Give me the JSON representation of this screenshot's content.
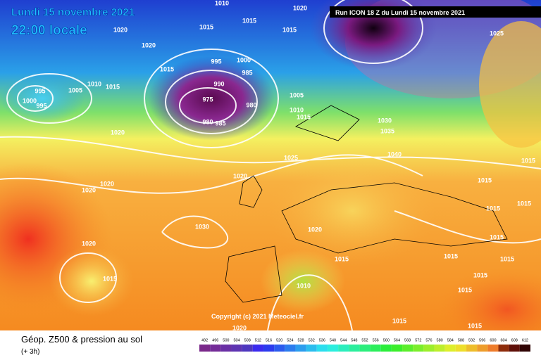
{
  "header": {
    "date": "Lundi 15 novembre 2021",
    "time": "22:00 locale",
    "run": "Run ICON 18 Z du Lundi 15 novembre 2021"
  },
  "footer": {
    "title": "Géop. Z500 & pression au sol",
    "lead": "(+ 3h)",
    "copyright": "Copyright (c) 2021 Meteociel.fr"
  },
  "isobar_labels": [
    "1010",
    "1020",
    "1020",
    "1015",
    "1015",
    "1015",
    "1020",
    "1015",
    "995",
    "1000",
    "985",
    "990",
    "995",
    "1005",
    "1010",
    "1015",
    "1000",
    "995",
    "975",
    "980",
    "980",
    "985",
    "1005",
    "1010",
    "1015",
    "1025",
    "1020",
    "1030",
    "1035",
    "1040",
    "1025",
    "1020",
    "1020",
    "1020",
    "1030",
    "1020",
    "1020",
    "1015",
    "1010",
    "1015",
    "1015",
    "1015",
    "1015",
    "1015",
    "1015",
    "1015",
    "1015",
    "1020",
    "1015",
    "1015",
    "1015",
    "1015"
  ],
  "colorbar": {
    "ticks": [
      492,
      496,
      500,
      504,
      508,
      512,
      516,
      520,
      524,
      528,
      532,
      536,
      540,
      544,
      548,
      552,
      556,
      560,
      564,
      568,
      572,
      576,
      580,
      584,
      588,
      592,
      596,
      600,
      604,
      608,
      612
    ]
  }
}
